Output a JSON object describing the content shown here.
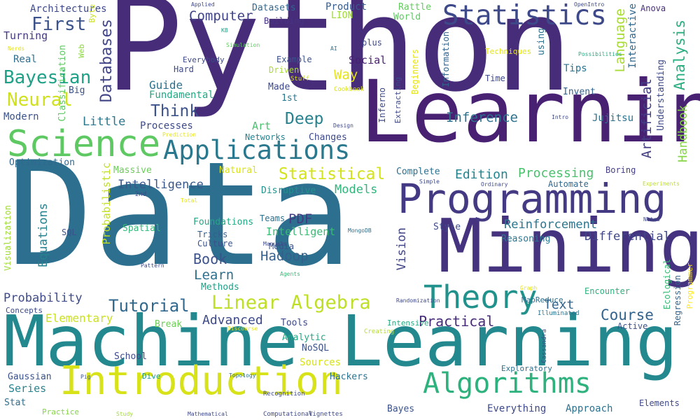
{
  "words": [
    {
      "text": "Python",
      "color": "#472c7a"
    },
    {
      "text": "Data",
      "color": "#2c6f8e"
    },
    {
      "text": "Machine Learning",
      "color": "#23898e"
    },
    {
      "text": "Learning",
      "color": "#482173"
    },
    {
      "text": "Mining",
      "color": "#46337f"
    },
    {
      "text": "Programming",
      "color": "#443983"
    },
    {
      "text": "Science",
      "color": "#5ec962"
    },
    {
      "text": "Introduction",
      "color": "#d8e219"
    },
    {
      "text": "Algorithms",
      "color": "#2db27d"
    },
    {
      "text": "Applications",
      "color": "#2a788e"
    },
    {
      "text": "Statistics",
      "color": "#3e4989"
    },
    {
      "text": "Theory",
      "color": "#21918c"
    },
    {
      "text": "Linear Algebra",
      "color": "#bddf26"
    },
    {
      "text": "Bayesian",
      "color": "#1fa187"
    },
    {
      "text": "Neural",
      "color": "#d0e11c"
    },
    {
      "text": "First",
      "color": "#3b528b"
    },
    {
      "text": "Tutorial",
      "color": "#31688e"
    },
    {
      "text": "Deep",
      "color": "#26828e"
    },
    {
      "text": "Statistical",
      "color": "#d2e21b"
    },
    {
      "text": "Think",
      "color": "#3b528b"
    },
    {
      "text": "Computer",
      "color": "#414487"
    },
    {
      "text": "Databases",
      "color": "#414487"
    },
    {
      "text": "Analysis",
      "color": "#29af7f"
    },
    {
      "text": "Language",
      "color": "#a8db34"
    },
    {
      "text": "Artificial",
      "color": "#433e85"
    },
    {
      "text": "Understanding",
      "color": "#3e4a89"
    },
    {
      "text": "Handbook",
      "color": "#86d549"
    },
    {
      "text": "Interactive",
      "color": "#31688e"
    },
    {
      "text": "Inference",
      "color": "#2c728e"
    },
    {
      "text": "Processing",
      "color": "#4ac16d"
    },
    {
      "text": "Edition",
      "color": "#25848e"
    },
    {
      "text": "Reinforcement",
      "color": "#2b758e"
    },
    {
      "text": "Differential",
      "color": "#404688"
    },
    {
      "text": "Book",
      "color": "#3b528b"
    },
    {
      "text": "Learn",
      "color": "#2d708e"
    },
    {
      "text": "Hadoop",
      "color": "#355f8d"
    },
    {
      "text": "PDF",
      "color": "#443a83"
    },
    {
      "text": "Intelligent",
      "color": "#3aba76"
    },
    {
      "text": "Models",
      "color": "#31b57b"
    },
    {
      "text": "Intelligence",
      "color": "#38588c"
    },
    {
      "text": "Probabilistic",
      "color": "#c2df23"
    },
    {
      "text": "Equations",
      "color": "#26828e"
    },
    {
      "text": "Vision",
      "color": "#414487"
    },
    {
      "text": "Course",
      "color": "#33638d"
    },
    {
      "text": "Practical",
      "color": "#472c7a"
    },
    {
      "text": "Text",
      "color": "#33638d"
    },
    {
      "text": "Advanced",
      "color": "#3e4989"
    },
    {
      "text": "Probability",
      "color": "#3e4a89"
    },
    {
      "text": "Elementary",
      "color": "#cae11f"
    },
    {
      "text": "Little",
      "color": "#2a778e"
    },
    {
      "text": "Architectures",
      "color": "#3e4989"
    },
    {
      "text": "Turning",
      "color": "#443983"
    },
    {
      "text": "Real",
      "color": "#2e6e8e"
    },
    {
      "text": "Modern",
      "color": "#3b528b"
    },
    {
      "text": "Big",
      "color": "#3b528b"
    },
    {
      "text": "Guide",
      "color": "#2c728e"
    },
    {
      "text": "Fundamental",
      "color": "#22a884"
    },
    {
      "text": "Processes",
      "color": "#3e4989"
    },
    {
      "text": "Optimization",
      "color": "#31688e"
    },
    {
      "text": "Massive",
      "color": "#6ccd5a"
    },
    {
      "text": "Networks",
      "color": "#26828e"
    },
    {
      "text": "Art",
      "color": "#4ac16d"
    },
    {
      "text": "Changes",
      "color": "#3e4989"
    },
    {
      "text": "Way",
      "color": "#e5e419"
    },
    {
      "text": "Social",
      "color": "#481f70"
    },
    {
      "text": "Product",
      "color": "#365d8d"
    },
    {
      "text": "Datasets",
      "color": "#31688e"
    },
    {
      "text": "Building",
      "color": "#463480"
    },
    {
      "text": "LION",
      "color": "#a0da39"
    },
    {
      "text": "Rattle",
      "color": "#65cb5e"
    },
    {
      "text": "World",
      "color": "#5ec962"
    },
    {
      "text": "Anova",
      "color": "#472d7b"
    },
    {
      "text": "Tips",
      "color": "#2c728e"
    },
    {
      "text": "Invent",
      "color": "#33638d"
    },
    {
      "text": "Jujitsu",
      "color": "#2c728e"
    },
    {
      "text": "Complete",
      "color": "#2d708e"
    },
    {
      "text": "Disruptive",
      "color": "#21918c"
    },
    {
      "text": "Natural",
      "color": "#d8e219"
    },
    {
      "text": "Boring",
      "color": "#433e85"
    },
    {
      "text": "Automate",
      "color": "#31688e"
    },
    {
      "text": "Style",
      "color": "#3e4989"
    },
    {
      "text": "Reasoning",
      "color": "#2a788e"
    },
    {
      "text": "Encounter",
      "color": "#2db27d"
    },
    {
      "text": "Regression",
      "color": "#33638d"
    },
    {
      "text": "Ecological",
      "color": "#3aba76"
    },
    {
      "text": "Programmer",
      "color": "#fde725"
    },
    {
      "text": "MapReduce",
      "color": "#2d708e"
    },
    {
      "text": "Active",
      "color": "#3b528b"
    },
    {
      "text": "Illuminated",
      "color": "#2c728e"
    },
    {
      "text": "Foundations",
      "color": "#22a884"
    },
    {
      "text": "Tricks",
      "color": "#355f8d"
    },
    {
      "text": "Culture",
      "color": "#3b528b"
    },
    {
      "text": "Spatial",
      "color": "#35b779"
    },
    {
      "text": "Methods",
      "color": "#1fa187"
    },
    {
      "text": "Media",
      "color": "#3b528b"
    },
    {
      "text": "Teams",
      "color": "#2d708e"
    },
    {
      "text": "Break",
      "color": "#6ece58"
    },
    {
      "text": "Tools",
      "color": "#3e4989"
    },
    {
      "text": "Analytic",
      "color": "#22a884"
    },
    {
      "text": "NoSQL",
      "color": "#3b528b"
    },
    {
      "text": "Sources",
      "color": "#d8e219"
    },
    {
      "text": "Hackers",
      "color": "#2c728e"
    },
    {
      "text": "Intensive",
      "color": "#25ab82"
    },
    {
      "text": "Creating",
      "color": "#b5de2b"
    },
    {
      "text": "Bayes",
      "color": "#3b528b"
    },
    {
      "text": "Everything",
      "color": "#3e4989"
    },
    {
      "text": "Approach",
      "color": "#2c728e"
    },
    {
      "text": "Elements",
      "color": "#3e4989"
    },
    {
      "text": "Concepts",
      "color": "#3e4a89"
    },
    {
      "text": "Series",
      "color": "#25848e"
    },
    {
      "text": "Stat",
      "color": "#2e6e8e"
    },
    {
      "text": "Gaussian",
      "color": "#3b528b"
    },
    {
      "text": "School",
      "color": "#3e4989"
    },
    {
      "text": "Dive",
      "color": "#1f9a8a"
    },
    {
      "text": "Practice",
      "color": "#86d549"
    },
    {
      "text": "Visualization",
      "color": "#a0da39"
    },
    {
      "text": "Classification",
      "color": "#5ec962"
    },
    {
      "text": "Web",
      "color": "#8fd744"
    },
    {
      "text": "Byte",
      "color": "#c8e020"
    },
    {
      "text": "Everybody",
      "color": "#3e4989"
    },
    {
      "text": "Hard",
      "color": "#3e4989"
    },
    {
      "text": "Example",
      "color": "#3b528b"
    },
    {
      "text": "Driven",
      "color": "#a8db34"
    },
    {
      "text": "Stuff",
      "color": "#d5e21a"
    },
    {
      "text": "Made",
      "color": "#3e4989"
    },
    {
      "text": "1st",
      "color": "#2a788e"
    },
    {
      "text": "plus",
      "color": "#3e4989"
    },
    {
      "text": "AI",
      "color": "#2d708e"
    },
    {
      "text": "Cookbook",
      "color": "#d8e219"
    },
    {
      "text": "Extracting",
      "color": "#3e4989"
    },
    {
      "text": "Beginners",
      "color": "#e5e419"
    },
    {
      "text": "Information",
      "color": "#33638d"
    },
    {
      "text": "Techniques",
      "color": "#e5e419"
    },
    {
      "text": "Time",
      "color": "#3e4989"
    },
    {
      "text": "using",
      "color": "#2c728e"
    },
    {
      "text": "Possibilities",
      "color": "#25ab82"
    },
    {
      "text": "Intro",
      "color": "#3e4989"
    },
    {
      "text": "Design",
      "color": "#3e4989"
    },
    {
      "text": "Inferno",
      "color": "#3e4989"
    },
    {
      "text": "SQL",
      "color": "#3b528b"
    },
    {
      "text": "KB",
      "color": "#1fa187"
    },
    {
      "text": "Nerds",
      "color": "#e5e419"
    },
    {
      "text": "Simulation",
      "color": "#5ec962"
    },
    {
      "text": "Applied",
      "color": "#3e4989"
    },
    {
      "text": "OpenIntro",
      "color": "#3e4989"
    },
    {
      "text": "Prediction",
      "color": "#e5e419"
    },
    {
      "text": "2nd",
      "color": "#3e4989"
    },
    {
      "text": "Total",
      "color": "#e5e419"
    },
    {
      "text": "Manuals",
      "color": "#3e4989"
    },
    {
      "text": "MongoDB",
      "color": "#2d708e"
    },
    {
      "text": "Pattern",
      "color": "#3e4989"
    },
    {
      "text": "Agents",
      "color": "#3aba76"
    },
    {
      "text": "Discourse",
      "color": "#e5e419"
    },
    {
      "text": "Randomization",
      "color": "#3e4989"
    },
    {
      "text": "Simple",
      "color": "#3e4989"
    },
    {
      "text": "Ordinary",
      "color": "#3e4989"
    },
    {
      "text": "Experiments",
      "color": "#bddf26"
    },
    {
      "text": "Notes",
      "color": "#3e4989"
    },
    {
      "text": "Graph",
      "color": "#e5e419"
    },
    {
      "text": "Cassandra",
      "color": "#3e4989"
    },
    {
      "text": "Exploratory",
      "color": "#2d708e"
    },
    {
      "text": "Pig",
      "color": "#3b528b"
    },
    {
      "text": "Topology",
      "color": "#2d708e"
    },
    {
      "text": "Recognition",
      "color": "#3e4989"
    },
    {
      "text": "Study",
      "color": "#a0da39"
    },
    {
      "text": "Mathematical",
      "color": "#3e4989"
    },
    {
      "text": "Computational",
      "color": "#3e4989"
    },
    {
      "text": "Vignettes",
      "color": "#3e4989"
    },
    {
      "text": "Epidemiology",
      "color": "#2a788e"
    }
  ]
}
